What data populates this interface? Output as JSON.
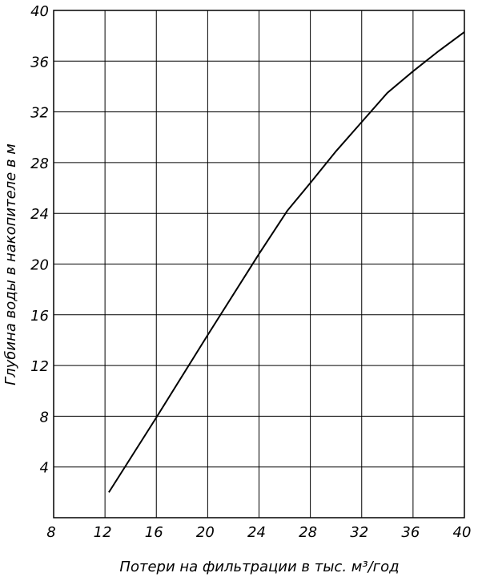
{
  "chart_data": {
    "type": "line",
    "x_label": "Потери на фильтрации в тыс. м³/год",
    "y_label": "Глубина воды в накопителе в м",
    "x": [
      12.3,
      16,
      20,
      24,
      26.2,
      28,
      30,
      32,
      34,
      36,
      38,
      40
    ],
    "series": [
      {
        "color": "#000000",
        "values": [
          2,
          7.9,
          14.4,
          20.8,
          24.2,
          26.4,
          28.9,
          31.2,
          33.5,
          35.2,
          36.8,
          38.3
        ]
      }
    ],
    "xlim": [
      8,
      40
    ],
    "xticks": [
      8,
      12,
      16,
      20,
      24,
      28,
      32,
      36,
      40
    ],
    "ylim": [
      0,
      40
    ],
    "yticks": [
      4,
      8,
      12,
      16,
      20,
      24,
      28,
      32,
      36,
      40
    ],
    "grid": true
  }
}
